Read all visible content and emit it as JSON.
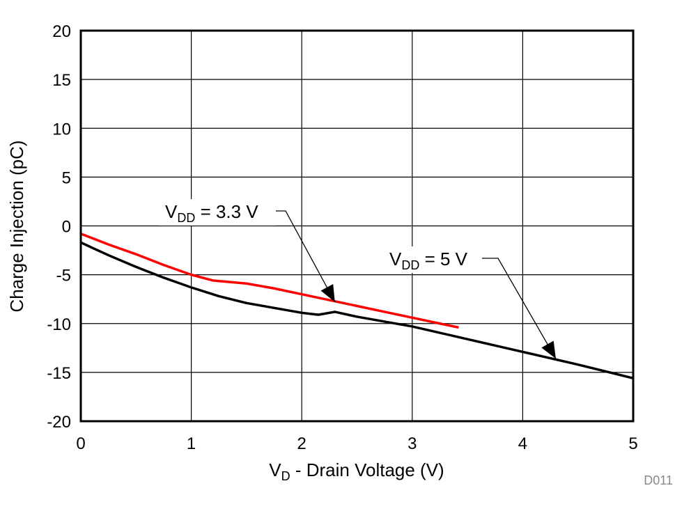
{
  "chart_data": {
    "type": "line",
    "xlabel": {
      "main": "V",
      "sub": "D",
      "rest": " - Drain Voltage (V)"
    },
    "ylabel": "Charge Injection (pC)",
    "xlim": [
      0,
      5
    ],
    "ylim": [
      -20,
      20
    ],
    "xticks": [
      "0",
      "1",
      "2",
      "3",
      "4",
      "5"
    ],
    "yticks": [
      "20",
      "15",
      "10",
      "5",
      "0",
      "-5",
      "-10",
      "-15",
      "-20"
    ],
    "grid": true,
    "series": [
      {
        "name": "VDD = 3.3 V",
        "color": "#ff0000",
        "x": [
          0,
          0.25,
          0.5,
          0.75,
          1.0,
          1.2,
          1.5,
          1.75,
          2.0,
          2.25,
          2.5,
          2.75,
          3.0,
          3.25,
          3.42
        ],
        "y": [
          -0.8,
          -1.9,
          -2.9,
          -4.0,
          -5.0,
          -5.6,
          -5.9,
          -6.4,
          -7.0,
          -7.6,
          -8.2,
          -8.8,
          -9.4,
          -10.0,
          -10.4
        ]
      },
      {
        "name": "VDD = 5 V",
        "color": "#000000",
        "x": [
          0,
          0.25,
          0.5,
          0.75,
          1.0,
          1.25,
          1.5,
          1.75,
          2.0,
          2.15,
          2.3,
          2.5,
          2.75,
          3.0,
          3.5,
          4.0,
          4.5,
          5.0
        ],
        "y": [
          -1.7,
          -3.0,
          -4.2,
          -5.3,
          -6.3,
          -7.2,
          -7.9,
          -8.4,
          -8.9,
          -9.1,
          -8.8,
          -9.3,
          -9.8,
          -10.3,
          -11.6,
          -12.9,
          -14.2,
          -15.6
        ]
      }
    ],
    "annotations": [
      {
        "main": "V",
        "sub": "DD",
        "rest": " = 3.3 V",
        "target": [
          2.3,
          -7.8
        ]
      },
      {
        "main": "V",
        "sub": "DD",
        "rest": " = 5 V",
        "target": [
          4.3,
          -13.6
        ]
      }
    ],
    "figure_id": "D011"
  }
}
